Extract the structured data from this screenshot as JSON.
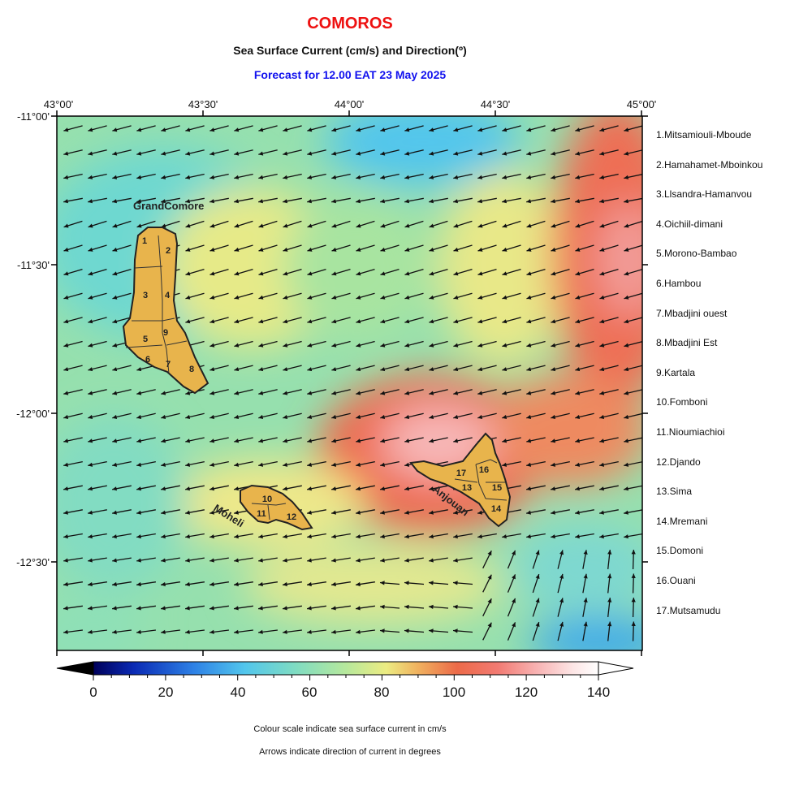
{
  "title": "COMOROS",
  "subtitle": "Sea Surface Current (cm/s) and Direction(º)",
  "forecast": "Forecast for  12.00 EAT 23 May 2025",
  "top_ticks": [
    "43°00'",
    "43°30'",
    "44°00'",
    "44°30'",
    "45°00'"
  ],
  "left_ticks": [
    "-11°00'",
    "-11°30'",
    "-12°00'",
    "-12°30'"
  ],
  "islands": {
    "grand_comore": "GrandComore",
    "moheli": "Moheli",
    "anjouan": "Anjouan"
  },
  "regions": [
    "1.Mitsamiouli-Mboude",
    "2.Hamahamet-Mboinkou",
    "3.Llsandra-Hamanvou",
    "4.Oichiil-dimani",
    "5.Morono-Bambao",
    "6.Hambou",
    "7.Mbadjini ouest",
    "8.Mbadjini Est",
    "9.Kartala",
    "10.Fomboni",
    "11.Nioumiachioi",
    "12.Djando",
    "13.Sima",
    "14.Mremani",
    "15.Domoni",
    "16.Ouani",
    "17.Mutsamudu"
  ],
  "region_numbers": [
    "1",
    "2",
    "3",
    "4",
    "5",
    "6",
    "7",
    "8",
    "9",
    "10",
    "11",
    "12",
    "13",
    "14",
    "15",
    "16",
    "17"
  ],
  "colorbar": {
    "ticks": [
      "0",
      "20",
      "40",
      "60",
      "80",
      "100",
      "120",
      "140"
    ],
    "colors": [
      "#00005a",
      "#0a2ab4",
      "#2e82e6",
      "#52c6ec",
      "#7fdcc2",
      "#b6e89c",
      "#ecec82",
      "#f0b460",
      "#ec6a48",
      "#f27a72",
      "#f8b4b4",
      "#fde6e6",
      "#ffffff"
    ]
  },
  "notes": {
    "scale": "Colour scale indicate sea surface current in cm/s",
    "arrows": "Arrows indicate direction of current in degrees"
  },
  "colors": {
    "title": "#ee1111",
    "forecast": "#1111ee",
    "land": "#e8b44c"
  }
}
